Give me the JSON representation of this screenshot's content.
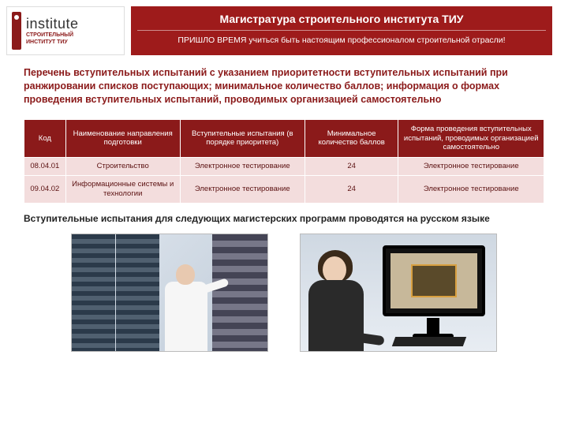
{
  "logo": {
    "big": "institute",
    "line1": "СТРОИТЕЛЬНЫЙ",
    "line2": "ИНСТИТУТ ТИУ"
  },
  "banner": {
    "title": "Магистратура строительного института ТИУ",
    "subtitle": "ПРИШЛО ВРЕМЯ учиться быть настоящим профессионалом строительной отрасли!"
  },
  "intro": "Перечень вступительных испытаний с указанием приоритетности вступительных испытаний при ранжировании списков поступающих; минимальное количество баллов; информация о формах проведения вступительных испытаний, проводимых организацией самостоятельно",
  "table": {
    "columns": [
      "Код",
      "Наименование направления подготовки",
      "Вступительные испытания (в порядке приоритета)",
      "Минимальное количество баллов",
      "Форма проведения вступительных испытаний, проводимых организацией самостоятельно"
    ],
    "col_widths": [
      "8%",
      "22%",
      "24%",
      "18%",
      "28%"
    ],
    "rows": [
      [
        "08.04.01",
        "Строительство",
        "Электронное тестирование",
        "24",
        "Электронное тестирование"
      ],
      [
        "09.04.02",
        "Информационные системы и технологии",
        "Электронное тестирование",
        "24",
        "Электронное тестирование"
      ]
    ],
    "header_bg": "#8b1a1a",
    "header_fg": "#ffffff",
    "cell_bg": "#f3dddd",
    "cell_fg": "#5b1111"
  },
  "note": "Вступительные испытания для следующих магистерских программ проводятся на русском языке",
  "colors": {
    "brand": "#9e1b1b",
    "intro_text": "#8b1a1a"
  }
}
